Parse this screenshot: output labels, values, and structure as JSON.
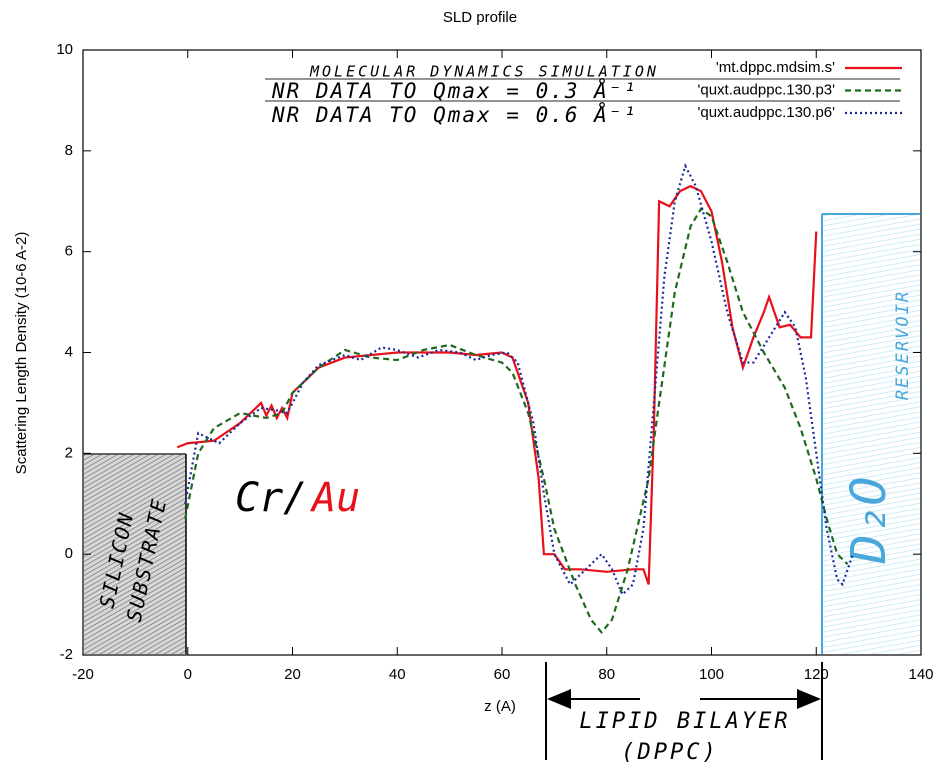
{
  "chart_data": {
    "type": "line",
    "title": "SLD profile",
    "xlabel": "z (A)",
    "ylabel": "Scattering Length Density (10-6 A-2)",
    "xlim": [
      -20,
      140
    ],
    "xticks": [
      -20,
      0,
      20,
      40,
      60,
      80,
      100,
      120,
      140
    ],
    "ylim": [
      -2,
      10
    ],
    "yticks": [
      -2,
      0,
      2,
      4,
      6,
      8,
      10
    ],
    "grid": false,
    "legend": "top-right",
    "series": [
      {
        "name": "'mt.dppc.mdsim.s'",
        "color": "#e8101a",
        "style": "solid",
        "x": [
          -2,
          0,
          5,
          10,
          14,
          15,
          16,
          17,
          18,
          19,
          20,
          25,
          30,
          40,
          50,
          55,
          60,
          62,
          65,
          67,
          68,
          70,
          72,
          75,
          80,
          85,
          87,
          88,
          89,
          90,
          92,
          94,
          96,
          98,
          100,
          102,
          104,
          106,
          108,
          110,
          111,
          113,
          115,
          117,
          119,
          120
        ],
        "values": [
          2.12,
          2.2,
          2.25,
          2.6,
          3.0,
          2.75,
          2.95,
          2.7,
          2.9,
          2.7,
          3.2,
          3.7,
          3.9,
          4.0,
          4.0,
          3.95,
          4.0,
          3.9,
          3.0,
          1.5,
          0.0,
          0.0,
          -0.3,
          -0.3,
          -0.35,
          -0.3,
          -0.3,
          -0.6,
          2.5,
          7.0,
          6.9,
          7.2,
          7.3,
          7.2,
          6.8,
          5.8,
          4.5,
          3.7,
          4.3,
          4.8,
          5.1,
          4.5,
          4.55,
          4.3,
          4.3,
          6.4
        ]
      },
      {
        "name": "'quxt.audppc.130.p3'",
        "color": "#1f6a1f",
        "style": "dashed",
        "x": [
          -0.5,
          2,
          5,
          10,
          15,
          18,
          20,
          25,
          30,
          35,
          40,
          45,
          50,
          55,
          60,
          62,
          65,
          68,
          70,
          74,
          77,
          79,
          81,
          84,
          88,
          90,
          93,
          96,
          98,
          100,
          103,
          106,
          110,
          114,
          117,
          120,
          122,
          124,
          126
        ],
        "values": [
          0.7,
          2.0,
          2.5,
          2.8,
          2.7,
          2.8,
          3.2,
          3.7,
          4.05,
          3.9,
          3.85,
          4.05,
          4.15,
          3.95,
          3.8,
          3.6,
          2.8,
          1.5,
          0.5,
          -0.6,
          -1.3,
          -1.55,
          -1.3,
          -0.3,
          1.5,
          3.0,
          5.2,
          6.5,
          6.85,
          6.7,
          5.8,
          4.8,
          4.0,
          3.3,
          2.5,
          1.5,
          0.7,
          0.0,
          -0.2
        ]
      },
      {
        "name": "'quxt.audppc.130.p6'",
        "color": "#1a2a9a",
        "style": "dotted",
        "x": [
          -0.5,
          2,
          4,
          6,
          10,
          14,
          17,
          19,
          22,
          25,
          30,
          33,
          37,
          40,
          44,
          48,
          52,
          55,
          58,
          61,
          63,
          66,
          68,
          70,
          73,
          75,
          77,
          79,
          81,
          83,
          85,
          87,
          89,
          91,
          93,
          95,
          97,
          100,
          103,
          106,
          108,
          111,
          114,
          116,
          118,
          120,
          122,
          124,
          125,
          127
        ],
        "values": [
          1.0,
          2.4,
          2.3,
          2.2,
          2.6,
          2.9,
          2.85,
          2.8,
          3.4,
          3.75,
          3.95,
          3.85,
          4.1,
          4.05,
          3.9,
          4.05,
          4.0,
          3.85,
          3.95,
          4.0,
          3.8,
          2.6,
          1.2,
          0.0,
          -0.6,
          -0.4,
          -0.2,
          0.0,
          -0.3,
          -0.8,
          -0.6,
          0.5,
          3.0,
          5.5,
          7.0,
          7.7,
          7.3,
          6.2,
          4.8,
          3.8,
          3.8,
          4.3,
          4.8,
          4.5,
          3.5,
          2.0,
          0.5,
          -0.5,
          -0.6,
          0.0
        ]
      }
    ],
    "annotations": {
      "md": "MOLECULAR DYNAMICS SIMULATION",
      "nr3": "NR DATA TO Qmax = 0.3 Å⁻¹",
      "nr6": "NR DATA TO Qmax = 0.6 Å⁻¹",
      "cr": "Cr/",
      "au": "Au",
      "silicon": "SILICON",
      "substrate": "SUBSTRATE",
      "d2o": "D₂O",
      "reservoir": "RESERVOIR",
      "lipid": "LIPID BILAYER",
      "dppc": "(DPPC)"
    }
  }
}
